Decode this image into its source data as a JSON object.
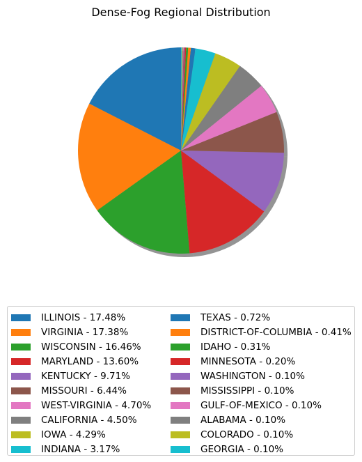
{
  "chart_data": {
    "type": "pie",
    "title": "Dense-Fog Regional Distribution",
    "shadow": true,
    "start_angle_deg": 90,
    "direction": "counterclockwise",
    "legend_position": "bottom",
    "legend_columns": 2,
    "slices": [
      {
        "label": "ILLINOIS - 17.48%",
        "value": 17.48,
        "color": "#1f77b4"
      },
      {
        "label": "VIRGINIA - 17.38%",
        "value": 17.38,
        "color": "#ff7f0e"
      },
      {
        "label": "WISCONSIN - 16.46%",
        "value": 16.46,
        "color": "#2ca02c"
      },
      {
        "label": "MARYLAND - 13.60%",
        "value": 13.6,
        "color": "#d62728"
      },
      {
        "label": "KENTUCKY - 9.71%",
        "value": 9.71,
        "color": "#9467bd"
      },
      {
        "label": "MISSOURI - 6.44%",
        "value": 6.44,
        "color": "#8c564b"
      },
      {
        "label": "WEST-VIRGINIA - 4.70%",
        "value": 4.7,
        "color": "#e377c2"
      },
      {
        "label": "CALIFORNIA - 4.50%",
        "value": 4.5,
        "color": "#7f7f7f"
      },
      {
        "label": "IOWA - 4.29%",
        "value": 4.29,
        "color": "#bcbd22"
      },
      {
        "label": "INDIANA - 3.17%",
        "value": 3.17,
        "color": "#17becf"
      },
      {
        "label": "TEXAS - 0.72%",
        "value": 0.72,
        "color": "#1f77b4"
      },
      {
        "label": "DISTRICT-OF-COLUMBIA - 0.41%",
        "value": 0.41,
        "color": "#ff7f0e"
      },
      {
        "label": "IDAHO - 0.31%",
        "value": 0.31,
        "color": "#2ca02c"
      },
      {
        "label": "MINNESOTA - 0.20%",
        "value": 0.2,
        "color": "#d62728"
      },
      {
        "label": "WASHINGTON - 0.10%",
        "value": 0.1,
        "color": "#9467bd"
      },
      {
        "label": "MISSISSIPPI - 0.10%",
        "value": 0.1,
        "color": "#8c564b"
      },
      {
        "label": "GULF-OF-MEXICO - 0.10%",
        "value": 0.1,
        "color": "#e377c2"
      },
      {
        "label": "ALABAMA - 0.10%",
        "value": 0.1,
        "color": "#7f7f7f"
      },
      {
        "label": "COLORADO - 0.10%",
        "value": 0.1,
        "color": "#bcbd22"
      },
      {
        "label": "GEORGIA - 0.10%",
        "value": 0.1,
        "color": "#17becf"
      }
    ]
  }
}
